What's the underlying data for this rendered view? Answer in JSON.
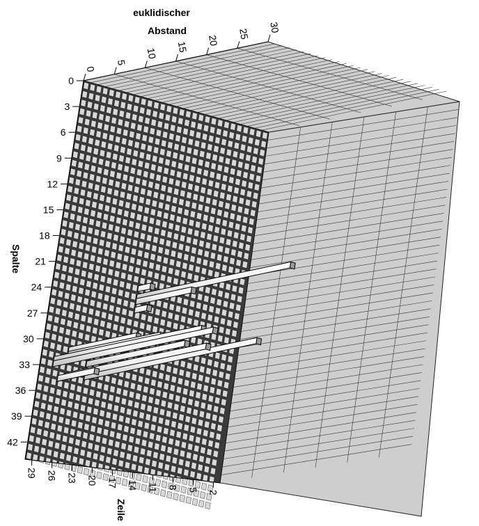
{
  "chart_data": {
    "type": "bar3d",
    "axes": {
      "value": {
        "title_line1": "euklidischer",
        "title_line2": "Abstand",
        "range": [
          0,
          30
        ],
        "ticks": [
          0,
          5,
          10,
          15,
          20,
          25,
          30
        ]
      },
      "spalte": {
        "title": "Spalte",
        "range": [
          0,
          44
        ],
        "ticks": [
          0,
          3,
          6,
          9,
          12,
          15,
          18,
          21,
          24,
          27,
          30,
          33,
          36,
          39,
          42
        ]
      },
      "zeile": {
        "title": "Zeile",
        "range": [
          1,
          30
        ],
        "ticks": [
          29,
          26,
          23,
          20,
          17,
          14,
          11,
          8,
          5,
          2
        ]
      }
    },
    "grid": true,
    "bars": [
      {
        "spalte": 21.5,
        "zeile": 17,
        "value": 2
      },
      {
        "spalte": 22.5,
        "zeile": 17,
        "value": 25
      },
      {
        "spalte": 23.0,
        "zeile": 17,
        "value": 9
      },
      {
        "spalte": 24.0,
        "zeile": 17,
        "value": 2
      },
      {
        "spalte": 29.5,
        "zeile": 23,
        "value": 2
      },
      {
        "spalte": 30.5,
        "zeile": 26,
        "value": 11
      },
      {
        "spalte": 31.0,
        "zeile": 26,
        "value": 15
      },
      {
        "spalte": 31.5,
        "zeile": 23,
        "value": 16
      },
      {
        "spalte": 32.0,
        "zeile": 28,
        "value": 24
      },
      {
        "spalte": 32.5,
        "zeile": 28,
        "value": 26
      },
      {
        "spalte": 33.0,
        "zeile": 23,
        "value": 28
      },
      {
        "spalte": 33.5,
        "zeile": 26,
        "value": 23
      },
      {
        "spalte": 34.0,
        "zeile": 27,
        "value": 6
      }
    ]
  }
}
